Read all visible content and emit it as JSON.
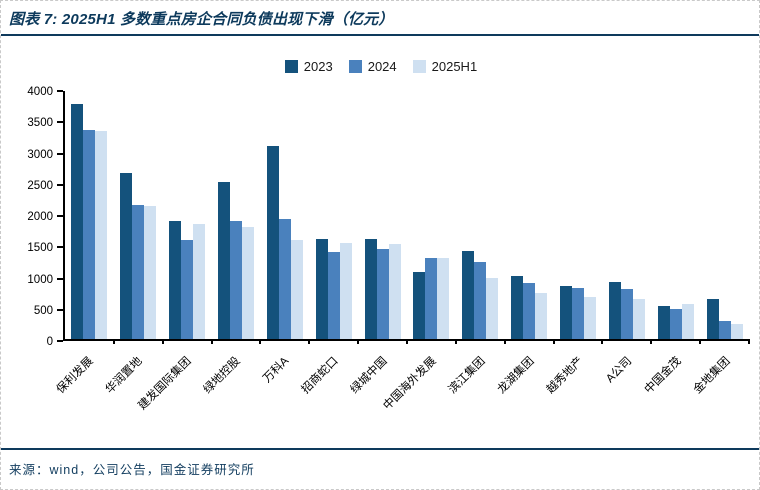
{
  "figure": {
    "title": "图表 7: 2025H1 多数重点房企合同负债出现下滑（亿元）",
    "source": "来源：wind，公司公告，国金证券研究所"
  },
  "chart_data": {
    "type": "bar",
    "title": "2025H1 多数重点房企合同负债出现下滑",
    "unit": "亿元",
    "categories": [
      "保利发展",
      "华润置地",
      "建发国际集团",
      "绿地控股",
      "万科A",
      "招商蛇口",
      "绿城中国",
      "中国海外发展",
      "滨江集团",
      "龙湖集团",
      "越秀地产",
      "A公司",
      "中国金茂",
      "金地集团"
    ],
    "series": [
      {
        "name": "2023",
        "color": "#14527c",
        "values": [
          3790,
          2680,
          1910,
          2530,
          3120,
          1610,
          1620,
          1080,
          1420,
          1010,
          860,
          920,
          530,
          640
        ]
      },
      {
        "name": "2024",
        "color": "#4a81bd",
        "values": [
          3370,
          2160,
          1590,
          1900,
          1940,
          1400,
          1450,
          1300,
          1240,
          900,
          820,
          800,
          480,
          290
        ]
      },
      {
        "name": "2025H1",
        "color": "#cfe0f1",
        "values": [
          3350,
          2140,
          1850,
          1800,
          1590,
          1550,
          1540,
          1310,
          990,
          750,
          680,
          650,
          560,
          250
        ]
      }
    ],
    "ylim": [
      0,
      4000
    ],
    "ytick_step": 500,
    "grid": false,
    "legend_position": "top-center",
    "colors": {
      "axis": "#000000",
      "title_text": "#0d3a5c",
      "rule": "#0e3a5c"
    }
  }
}
